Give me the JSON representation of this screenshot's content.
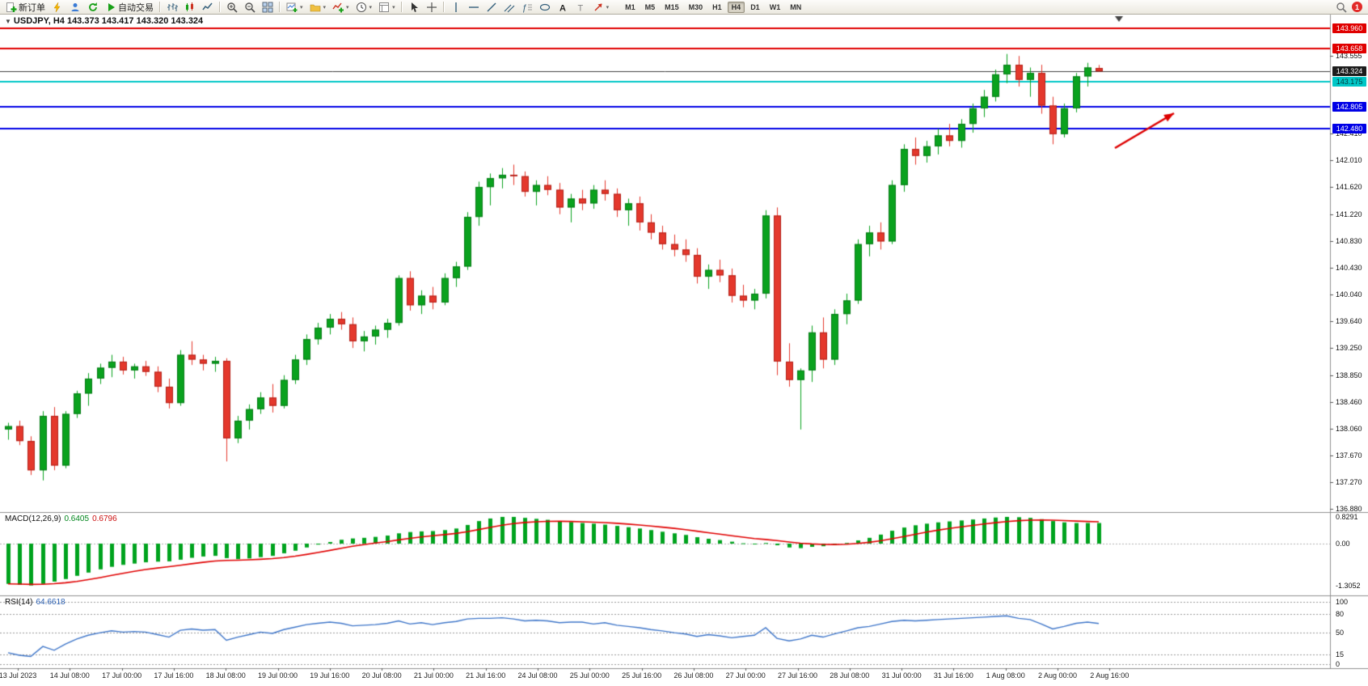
{
  "toolbar": {
    "buttons": [
      {
        "name": "new-order",
        "icon": "new-order",
        "label": "新订单"
      },
      {
        "name": "metaeditor",
        "icon": "lightning"
      },
      {
        "name": "community",
        "icon": "person"
      },
      {
        "name": "refresh",
        "icon": "refresh"
      },
      {
        "name": "auto-trading",
        "icon": "play",
        "label": "自动交易"
      },
      {
        "sep": true
      },
      {
        "name": "bar-chart-mode",
        "icon": "bar-chart"
      },
      {
        "name": "candlestick-mode",
        "icon": "candles"
      },
      {
        "name": "line-chart-mode",
        "icon": "line-chart"
      },
      {
        "sep": true
      },
      {
        "name": "zoom-in",
        "icon": "zoom-in"
      },
      {
        "name": "zoom-out",
        "icon": "zoom-out"
      },
      {
        "name": "tile-windows",
        "icon": "tiles"
      },
      {
        "sep": true
      },
      {
        "name": "new-chart",
        "icon": "chart-plus",
        "caret": true
      },
      {
        "name": "profiles",
        "icon": "folder",
        "caret": true
      },
      {
        "name": "indicators",
        "icon": "indicator-plus",
        "caret": true
      },
      {
        "name": "periods",
        "icon": "clock",
        "caret": true
      },
      {
        "name": "templates",
        "icon": "template",
        "caret": true
      },
      {
        "sep": true
      },
      {
        "name": "cursor",
        "icon": "cursor"
      },
      {
        "name": "crosshair",
        "icon": "crosshair"
      },
      {
        "sep": true
      },
      {
        "name": "vertical-line",
        "icon": "vline"
      },
      {
        "name": "horizontal-line",
        "icon": "hline"
      },
      {
        "name": "trendline",
        "icon": "trendline"
      },
      {
        "name": "equidistant-channel",
        "icon": "channel"
      },
      {
        "name": "fibonacci",
        "icon": "fibo"
      },
      {
        "name": "shapes",
        "icon": "ellipse"
      },
      {
        "name": "text",
        "icon": "text-a"
      },
      {
        "name": "text-label",
        "icon": "label-t"
      },
      {
        "name": "arrows",
        "icon": "arrow",
        "caret": true
      }
    ],
    "timeframes": {
      "items": [
        "M1",
        "M5",
        "M15",
        "M30",
        "H1",
        "H4",
        "D1",
        "W1",
        "MN"
      ],
      "active": "H4"
    },
    "right": {
      "search_icon": "search",
      "notification_badge": "1"
    }
  },
  "chart": {
    "title": "USDJPY, H4 143.373 143.417 143.320 143.324",
    "symbol": "USDJPY",
    "period": "H4"
  },
  "chart_data": {
    "type": "candlestick",
    "symbol": "USDJPY",
    "timeframe": "H4",
    "colors": {
      "bull": "#0aa21e",
      "bull_border": "#067a16",
      "bear": "#e4382c",
      "bear_border": "#b22018",
      "macd_histogram": "#00a31e",
      "macd_signal": "#e00000",
      "rsi_line": "#3f76c9",
      "current_price_line": "#3c3c3c"
    },
    "y_axis": {
      "price_at_top": 144.16,
      "price_at_bottom": 136.87,
      "ticks": [
        143.555,
        142.41,
        142.01,
        141.62,
        141.22,
        140.83,
        140.43,
        140.04,
        139.64,
        139.25,
        138.85,
        138.46,
        138.06,
        137.67,
        137.27,
        136.88
      ]
    },
    "levels": [
      {
        "price": 143.96,
        "label": "143.960",
        "line": "#e00000",
        "bg": "#e00000",
        "fg": "#ffffff",
        "lw": 2
      },
      {
        "price": 143.658,
        "label": "143.658",
        "line": "#e00000",
        "bg": "#e00000",
        "fg": "#ffffff",
        "lw": 2
      },
      {
        "price": 143.324,
        "label": "143.324",
        "line": "#3c3c3c",
        "bg": "#1c1c1c",
        "fg": "#ffffff",
        "lw": 1
      },
      {
        "price": 143.175,
        "label": "143.175",
        "line": "#00c7c7",
        "bg": "#00c7c7",
        "fg": "#00393c",
        "lw": 2
      },
      {
        "price": 142.805,
        "label": "142.805",
        "line": "#0000e6",
        "bg": "#0000e6",
        "fg": "#ffffff",
        "lw": 2
      },
      {
        "price": 142.48,
        "label": "142.480",
        "line": "#0000e6",
        "bg": "#0000e6",
        "fg": "#ffffff",
        "lw": 2
      }
    ],
    "annotations": [
      {
        "type": "arrow",
        "color": "#dd0000",
        "from": [
          1379,
          183
        ],
        "to": [
          1452,
          140
        ]
      }
    ],
    "x_labels": [
      "13 Jul 2023",
      "14 Jul 08:00",
      "17 Jul 00:00",
      "17 Jul 16:00",
      "18 Jul 08:00",
      "19 Jul 00:00",
      "19 Jul 16:00",
      "20 Jul 08:00",
      "21 Jul 00:00",
      "21 Jul 16:00",
      "24 Jul 08:00",
      "25 Jul 00:00",
      "25 Jul 16:00",
      "26 Jul 08:00",
      "27 Jul 00:00",
      "27 Jul 16:00",
      "28 Jul 08:00",
      "31 Jul 00:00",
      "31 Jul 16:00",
      "1 Aug 08:00",
      "2 Aug 00:00",
      "2 Aug 16:00"
    ],
    "candles": [
      [
        138.05,
        138.15,
        137.9,
        138.1
      ],
      [
        138.1,
        138.18,
        137.82,
        137.88
      ],
      [
        137.88,
        137.95,
        137.38,
        137.45
      ],
      [
        137.45,
        138.32,
        137.3,
        138.25
      ],
      [
        138.25,
        138.38,
        137.45,
        137.52
      ],
      [
        137.52,
        138.32,
        137.48,
        138.28
      ],
      [
        138.28,
        138.62,
        138.22,
        138.58
      ],
      [
        138.58,
        138.88,
        138.4,
        138.8
      ],
      [
        138.8,
        139.02,
        138.72,
        138.96
      ],
      [
        138.96,
        139.15,
        138.82,
        139.05
      ],
      [
        139.05,
        139.12,
        138.86,
        138.92
      ],
      [
        138.92,
        139.02,
        138.8,
        138.98
      ],
      [
        138.98,
        139.06,
        138.84,
        138.9
      ],
      [
        138.9,
        138.98,
        138.6,
        138.68
      ],
      [
        138.68,
        138.8,
        138.36,
        138.44
      ],
      [
        138.44,
        139.22,
        138.4,
        139.15
      ],
      [
        139.15,
        139.35,
        139.0,
        139.08
      ],
      [
        139.08,
        139.15,
        138.92,
        139.02
      ],
      [
        139.02,
        139.12,
        138.9,
        139.06
      ],
      [
        139.06,
        139.1,
        137.58,
        137.92
      ],
      [
        137.92,
        138.25,
        137.85,
        138.18
      ],
      [
        138.18,
        138.42,
        138.05,
        138.35
      ],
      [
        138.35,
        138.6,
        138.28,
        138.52
      ],
      [
        138.52,
        138.72,
        138.3,
        138.4
      ],
      [
        138.4,
        138.85,
        138.36,
        138.78
      ],
      [
        138.78,
        139.15,
        138.72,
        139.08
      ],
      [
        139.08,
        139.45,
        139.0,
        139.38
      ],
      [
        139.38,
        139.62,
        139.3,
        139.55
      ],
      [
        139.55,
        139.75,
        139.45,
        139.68
      ],
      [
        139.68,
        139.78,
        139.52,
        139.6
      ],
      [
        139.6,
        139.7,
        139.25,
        139.35
      ],
      [
        139.35,
        139.5,
        139.2,
        139.42
      ],
      [
        139.42,
        139.58,
        139.3,
        139.52
      ],
      [
        139.52,
        139.68,
        139.4,
        139.62
      ],
      [
        139.62,
        140.32,
        139.58,
        140.28
      ],
      [
        140.28,
        140.38,
        139.8,
        139.88
      ],
      [
        139.88,
        140.1,
        139.75,
        140.02
      ],
      [
        140.02,
        140.15,
        139.82,
        139.92
      ],
      [
        139.92,
        140.35,
        139.88,
        140.28
      ],
      [
        140.28,
        140.52,
        140.15,
        140.45
      ],
      [
        140.45,
        141.25,
        140.4,
        141.18
      ],
      [
        141.18,
        141.7,
        141.05,
        141.62
      ],
      [
        141.62,
        141.82,
        141.35,
        141.75
      ],
      [
        141.75,
        141.9,
        141.6,
        141.8
      ],
      [
        141.8,
        141.95,
        141.65,
        141.78
      ],
      [
        141.78,
        141.85,
        141.48,
        141.55
      ],
      [
        141.55,
        141.72,
        141.35,
        141.65
      ],
      [
        141.65,
        141.78,
        141.5,
        141.58
      ],
      [
        141.58,
        141.68,
        141.22,
        141.32
      ],
      [
        141.32,
        141.52,
        141.1,
        141.45
      ],
      [
        141.45,
        141.58,
        141.28,
        141.38
      ],
      [
        141.38,
        141.65,
        141.3,
        141.58
      ],
      [
        141.58,
        141.72,
        141.42,
        141.52
      ],
      [
        141.52,
        141.6,
        141.18,
        141.28
      ],
      [
        141.28,
        141.45,
        141.05,
        141.38
      ],
      [
        141.38,
        141.48,
        140.98,
        141.1
      ],
      [
        141.1,
        141.22,
        140.85,
        140.95
      ],
      [
        140.95,
        141.05,
        140.7,
        140.78
      ],
      [
        140.78,
        140.92,
        140.6,
        140.7
      ],
      [
        140.7,
        140.85,
        140.52,
        140.62
      ],
      [
        140.62,
        140.72,
        140.2,
        140.3
      ],
      [
        140.3,
        140.48,
        140.12,
        140.4
      ],
      [
        140.4,
        140.55,
        140.22,
        140.32
      ],
      [
        140.32,
        140.42,
        139.92,
        140.02
      ],
      [
        140.02,
        140.18,
        139.85,
        139.95
      ],
      [
        139.95,
        140.12,
        139.82,
        140.05
      ],
      [
        140.05,
        141.28,
        139.98,
        141.2
      ],
      [
        141.2,
        141.32,
        138.85,
        139.05
      ],
      [
        139.05,
        139.32,
        138.68,
        138.78
      ],
      [
        138.78,
        138.95,
        138.05,
        138.92
      ],
      [
        138.92,
        139.58,
        138.75,
        139.48
      ],
      [
        139.48,
        139.7,
        138.95,
        139.08
      ],
      [
        139.08,
        139.82,
        139.0,
        139.75
      ],
      [
        139.75,
        140.05,
        139.6,
        139.95
      ],
      [
        139.95,
        140.85,
        139.9,
        140.78
      ],
      [
        140.78,
        141.05,
        140.6,
        140.95
      ],
      [
        140.95,
        141.1,
        140.7,
        140.82
      ],
      [
        140.82,
        141.72,
        140.78,
        141.65
      ],
      [
        141.65,
        142.25,
        141.55,
        142.18
      ],
      [
        142.18,
        142.35,
        141.95,
        142.08
      ],
      [
        142.08,
        142.3,
        141.98,
        142.22
      ],
      [
        142.22,
        142.48,
        142.1,
        142.38
      ],
      [
        142.38,
        142.55,
        142.22,
        142.3
      ],
      [
        142.3,
        142.62,
        142.2,
        142.55
      ],
      [
        142.55,
        142.85,
        142.42,
        142.78
      ],
      [
        142.78,
        143.05,
        142.65,
        142.95
      ],
      [
        142.95,
        143.35,
        142.88,
        143.28
      ],
      [
        143.28,
        143.58,
        143.15,
        143.42
      ],
      [
        143.42,
        143.55,
        143.1,
        143.2
      ],
      [
        143.2,
        143.38,
        142.95,
        143.3
      ],
      [
        143.3,
        143.42,
        142.7,
        142.82
      ],
      [
        142.82,
        142.95,
        142.25,
        142.4
      ],
      [
        142.4,
        142.85,
        142.35,
        142.78
      ],
      [
        142.78,
        143.3,
        142.72,
        143.25
      ],
      [
        143.25,
        143.45,
        143.1,
        143.38
      ],
      [
        143.373,
        143.417,
        143.32,
        143.324
      ]
    ],
    "indicators": {
      "macd": {
        "name": "MACD(12,26,9)",
        "value1": "0.6405",
        "value2": "0.6796",
        "axis_labels": [
          "0.8291",
          "0.00",
          "-1.3052"
        ],
        "axis_values": [
          0.8291,
          0,
          -1.3052
        ],
        "histogram": [
          -1.25,
          -1.28,
          -1.3,
          -1.25,
          -1.18,
          -1.1,
          -1.0,
          -0.9,
          -0.8,
          -0.72,
          -0.66,
          -0.62,
          -0.58,
          -0.56,
          -0.55,
          -0.5,
          -0.44,
          -0.4,
          -0.38,
          -0.45,
          -0.48,
          -0.46,
          -0.42,
          -0.38,
          -0.3,
          -0.22,
          -0.12,
          -0.03,
          0.05,
          0.12,
          0.16,
          0.18,
          0.21,
          0.25,
          0.32,
          0.36,
          0.38,
          0.39,
          0.42,
          0.47,
          0.58,
          0.7,
          0.78,
          0.83,
          0.83,
          0.8,
          0.77,
          0.74,
          0.7,
          0.67,
          0.64,
          0.62,
          0.59,
          0.55,
          0.51,
          0.47,
          0.42,
          0.37,
          0.32,
          0.27,
          0.2,
          0.15,
          0.11,
          0.06,
          0.01,
          -0.02,
          0.02,
          -0.05,
          -0.12,
          -0.14,
          -0.1,
          -0.08,
          -0.04,
          0.02,
          0.1,
          0.18,
          0.28,
          0.4,
          0.5,
          0.57,
          0.62,
          0.66,
          0.69,
          0.72,
          0.75,
          0.78,
          0.81,
          0.83,
          0.82,
          0.8,
          0.76,
          0.7,
          0.66,
          0.64,
          0.64,
          0.6405
        ]
      },
      "rsi": {
        "name": "RSI(14)",
        "value": "64.6618",
        "levels": [
          100,
          80,
          50,
          15,
          0
        ],
        "values": [
          18,
          14,
          12,
          28,
          22,
          32,
          40,
          46,
          50,
          53,
          51,
          52,
          51,
          47,
          43,
          54,
          56,
          54,
          55,
          38,
          43,
          47,
          51,
          49,
          55,
          59,
          63,
          65,
          67,
          65,
          61,
          62,
          63,
          65,
          69,
          64,
          66,
          63,
          66,
          68,
          72,
          73,
          73,
          74,
          72,
          69,
          70,
          69,
          66,
          67,
          67,
          64,
          66,
          62,
          60,
          58,
          55,
          53,
          50,
          48,
          44,
          47,
          45,
          42,
          44,
          46,
          58,
          41,
          37,
          40,
          46,
          43,
          48,
          53,
          58,
          60,
          64,
          68,
          70,
          69,
          70,
          71,
          72,
          73,
          74,
          75,
          76,
          77,
          73,
          71,
          64,
          56,
          60,
          65,
          67,
          64.66
        ]
      }
    }
  }
}
